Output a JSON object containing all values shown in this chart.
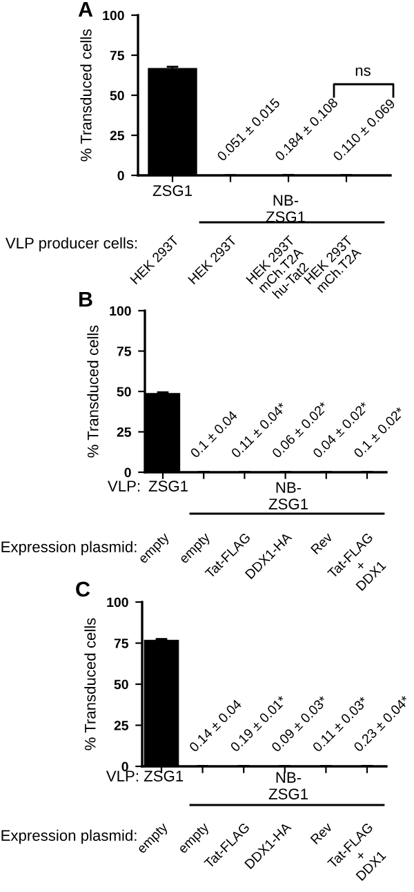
{
  "chart_data": [
    {
      "type": "bar",
      "ylabel": "% Transduced cells",
      "categories": [
        "HEK 293T",
        "HEK 293T",
        "HEK 293T\nmCh.T2A\nhu-Tat2",
        "HEK 293T\nmCh.T2A"
      ],
      "color": "#000000",
      "values": [
        67,
        0.051,
        0.184,
        0.11
      ],
      "errors": [
        0.8,
        0.015,
        0.108,
        0.069
      ],
      "value_labels": [
        null,
        "0.051 ± 0.015",
        "0.184 ± 0.108",
        "0.110 ± 0.069"
      ],
      "ylim": [
        0,
        100
      ],
      "yticks": [
        0,
        25,
        50,
        75,
        100
      ],
      "annotations": [
        "A",
        "ZSG1",
        "NB-\nZSG1",
        "VLP producer cells:",
        "ns"
      ]
    },
    {
      "type": "bar",
      "ylabel": "% Transduced cells",
      "categories": [
        "empty",
        "empty",
        "Tat-FLAG",
        "DDX1-HA",
        "Rev",
        "Tat-FLAG\n+\nDDX1"
      ],
      "color": "#000000",
      "values": [
        49,
        0.1,
        0.11,
        0.06,
        0.04,
        0.1
      ],
      "errors": [
        0.5,
        0.04,
        0.04,
        0.02,
        0.02,
        0.02
      ],
      "value_labels": [
        null,
        "0.1 ± 0.04",
        "0.11 ± 0.04*",
        "0.06 ± 0.02*",
        "0.04 ± 0.02*",
        "0.1 ± 0.02*"
      ],
      "ylim": [
        0,
        100
      ],
      "yticks": [
        0,
        25,
        50,
        75,
        100
      ],
      "annotations": [
        "B",
        "VLP:",
        "ZSG1",
        "NB-\nZSG1",
        "Expression plasmid:"
      ]
    },
    {
      "type": "bar",
      "ylabel": "% Transduced cells",
      "categories": [
        "empty",
        "empty",
        "Tat-FLAG",
        "DDX1-HA",
        "Rev",
        "Tat-FLAG\n+\nDDX1"
      ],
      "color": "#000000",
      "values": [
        77,
        0.14,
        0.19,
        0.09,
        0.11,
        0.23
      ],
      "errors": [
        0.5,
        0.04,
        0.01,
        0.03,
        0.03,
        0.04
      ],
      "value_labels": [
        null,
        "0.14 ± 0.04",
        "0.19 ± 0.01*",
        "0.09 ± 0.03*",
        "0.11 ± 0.03*",
        "0.23 ± 0.04*"
      ],
      "ylim": [
        0,
        100
      ],
      "yticks": [
        0,
        25,
        50,
        75,
        100
      ],
      "annotations": [
        "C",
        "VLP: ZSG1",
        "NB-\nZSG1",
        "Expression plasmid:"
      ]
    }
  ]
}
